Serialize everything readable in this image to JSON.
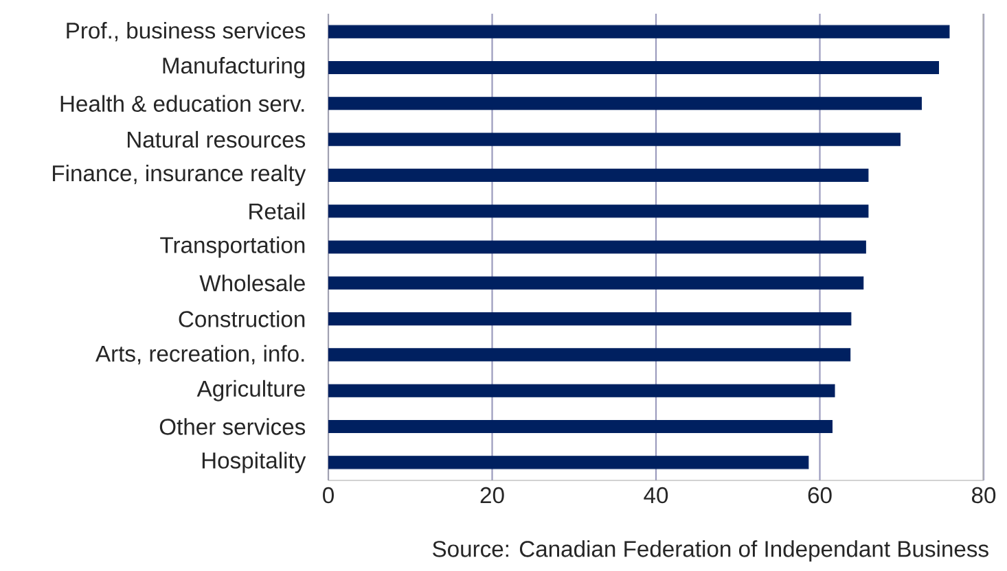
{
  "chart_data": {
    "type": "bar",
    "orientation": "horizontal",
    "categories": [
      "Prof., business services",
      "Manufacturing",
      "Health & education serv.",
      "Natural resources",
      "Finance, insurance realty",
      "Retail",
      "Transportation",
      "Wholesale",
      "Construction",
      "Arts, recreation, info.",
      "Agriculture",
      "Other services",
      "Hospitality"
    ],
    "values": [
      75.8,
      74.5,
      72.4,
      69.8,
      65.9,
      65.9,
      65.6,
      65.3,
      63.8,
      63.7,
      61.8,
      61.5,
      58.6
    ],
    "color": "#002060",
    "xlim": [
      0,
      80
    ],
    "xticks": [
      0,
      20,
      40,
      60,
      80
    ],
    "grid": "x",
    "annotations": [
      "Source: Canadian Federation of Independant Business"
    ]
  }
}
